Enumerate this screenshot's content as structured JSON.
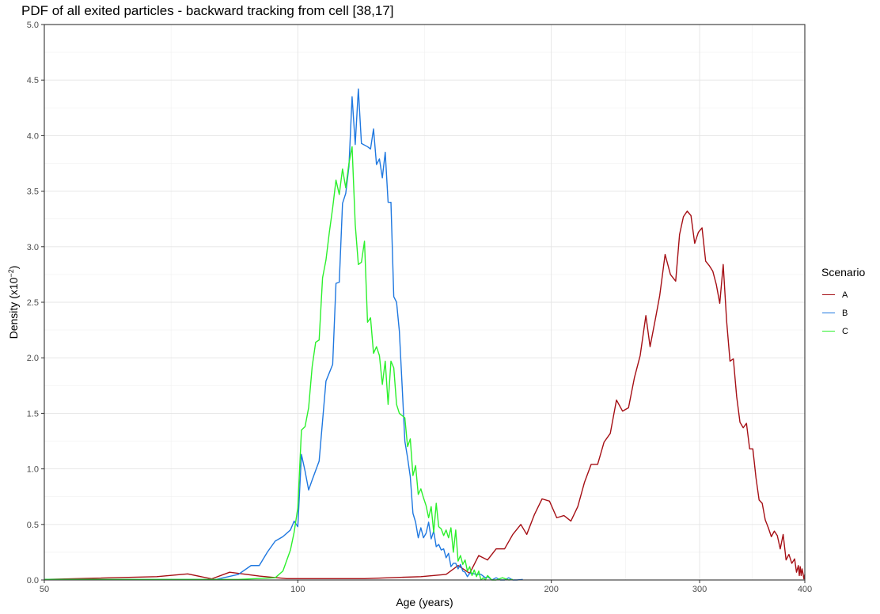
{
  "chart_data": {
    "type": "line",
    "title": "PDF of all exited particles - backward tracking from cell [38,17]",
    "xlabel": "Age (years)",
    "ylabel": "Density (x10",
    "ylabel_exponent": "−2",
    "ylabel_close": ")",
    "x_scale": "log",
    "xlim": [
      50,
      400
    ],
    "ylim": [
      0,
      5
    ],
    "x_ticks": [
      50,
      100,
      200,
      300,
      400
    ],
    "y_ticks": [
      0,
      0.5,
      1,
      1.5,
      2,
      2.5,
      3,
      3.5,
      4,
      4.5,
      5
    ],
    "x_tick_labels": [
      "50",
      "100",
      "200",
      "300",
      "400"
    ],
    "y_tick_labels": [
      "0.0",
      "0.5",
      "1.0",
      "1.5",
      "2.0",
      "2.5",
      "3.0",
      "3.5",
      "4.0",
      "4.5",
      "5.0"
    ],
    "grid": true,
    "legend_title": "Scenario",
    "legend_position": "right",
    "series": [
      {
        "name": "A",
        "color": "#a50f15",
        "points": [
          [
            50,
            0.005
          ],
          [
            68,
            0.03
          ],
          [
            74,
            0.055
          ],
          [
            79,
            0.01
          ],
          [
            83,
            0.07
          ],
          [
            90,
            0.035
          ],
          [
            97,
            0.012
          ],
          [
            120,
            0.012
          ],
          [
            140,
            0.03
          ],
          [
            150,
            0.05
          ],
          [
            155,
            0.13
          ],
          [
            160,
            0.06
          ],
          [
            164,
            0.22
          ],
          [
            168,
            0.18
          ],
          [
            172,
            0.28
          ],
          [
            176,
            0.28
          ],
          [
            180,
            0.41
          ],
          [
            184,
            0.5
          ],
          [
            187,
            0.41
          ],
          [
            191,
            0.59
          ],
          [
            195,
            0.73
          ],
          [
            199,
            0.71
          ],
          [
            203,
            0.56
          ],
          [
            207,
            0.58
          ],
          [
            211,
            0.53
          ],
          [
            215,
            0.66
          ],
          [
            219,
            0.88
          ],
          [
            223,
            1.04
          ],
          [
            227,
            1.04
          ],
          [
            231,
            1.24
          ],
          [
            235,
            1.32
          ],
          [
            239,
            1.62
          ],
          [
            243,
            1.52
          ],
          [
            247,
            1.55
          ],
          [
            251,
            1.82
          ],
          [
            255,
            2.02
          ],
          [
            259,
            2.38
          ],
          [
            262,
            2.1
          ],
          [
            266,
            2.36
          ],
          [
            269,
            2.56
          ],
          [
            273,
            2.93
          ],
          [
            277,
            2.75
          ],
          [
            281,
            2.69
          ],
          [
            284,
            3.11
          ],
          [
            287,
            3.27
          ],
          [
            290,
            3.32
          ],
          [
            293,
            3.28
          ],
          [
            296,
            3.03
          ],
          [
            299,
            3.13
          ],
          [
            302,
            3.17
          ],
          [
            305,
            2.87
          ],
          [
            308,
            2.83
          ],
          [
            311,
            2.78
          ],
          [
            314,
            2.66
          ],
          [
            317,
            2.49
          ],
          [
            320,
            2.84
          ],
          [
            323,
            2.33
          ],
          [
            326,
            1.97
          ],
          [
            329,
            1.99
          ],
          [
            332,
            1.65
          ],
          [
            335,
            1.42
          ],
          [
            338,
            1.37
          ],
          [
            341,
            1.41
          ],
          [
            344,
            1.18
          ],
          [
            347,
            1.18
          ],
          [
            350,
            0.92
          ],
          [
            353,
            0.72
          ],
          [
            356,
            0.69
          ],
          [
            359,
            0.54
          ],
          [
            362,
            0.47
          ],
          [
            365,
            0.39
          ],
          [
            368,
            0.44
          ],
          [
            371,
            0.4
          ],
          [
            374,
            0.28
          ],
          [
            377,
            0.41
          ],
          [
            380,
            0.18
          ],
          [
            383,
            0.23
          ],
          [
            386,
            0.15
          ],
          [
            389,
            0.19
          ],
          [
            391,
            0.07
          ],
          [
            393,
            0.13
          ],
          [
            394,
            0.04
          ],
          [
            395,
            0.12
          ],
          [
            396,
            0.04
          ],
          [
            397,
            0.1
          ],
          [
            398,
            0.06
          ],
          [
            399,
            0.01
          ],
          [
            400,
            0.05
          ]
        ]
      },
      {
        "name": "B",
        "color": "#1f78e0",
        "points": [
          [
            50,
            0.005
          ],
          [
            80,
            0.005
          ],
          [
            85,
            0.05
          ],
          [
            88,
            0.13
          ],
          [
            90,
            0.13
          ],
          [
            92,
            0.25
          ],
          [
            94,
            0.35
          ],
          [
            96,
            0.39
          ],
          [
            98,
            0.45
          ],
          [
            99,
            0.53
          ],
          [
            100,
            0.48
          ],
          [
            101,
            1.13
          ],
          [
            102,
            0.98
          ],
          [
            103,
            0.81
          ],
          [
            104,
            0.9
          ],
          [
            106,
            1.07
          ],
          [
            108,
            1.79
          ],
          [
            110,
            1.94
          ],
          [
            111,
            2.67
          ],
          [
            112,
            2.68
          ],
          [
            113,
            3.39
          ],
          [
            114,
            3.48
          ],
          [
            115,
            3.72
          ],
          [
            116,
            4.35
          ],
          [
            117,
            3.92
          ],
          [
            118,
            4.42
          ],
          [
            119,
            3.93
          ],
          [
            121,
            3.9
          ],
          [
            122,
            3.88
          ],
          [
            123,
            4.06
          ],
          [
            124,
            3.74
          ],
          [
            125,
            3.79
          ],
          [
            126,
            3.62
          ],
          [
            127,
            3.85
          ],
          [
            128,
            3.4
          ],
          [
            129,
            3.4
          ],
          [
            130,
            2.55
          ],
          [
            131,
            2.5
          ],
          [
            132,
            2.24
          ],
          [
            133,
            1.75
          ],
          [
            134,
            1.25
          ],
          [
            135,
            1.1
          ],
          [
            136,
            0.93
          ],
          [
            137,
            0.6
          ],
          [
            138,
            0.52
          ],
          [
            139,
            0.38
          ],
          [
            140,
            0.47
          ],
          [
            141,
            0.38
          ],
          [
            142,
            0.42
          ],
          [
            143,
            0.52
          ],
          [
            144,
            0.37
          ],
          [
            145,
            0.44
          ],
          [
            146,
            0.3
          ],
          [
            147,
            0.32
          ],
          [
            148,
            0.27
          ],
          [
            149,
            0.28
          ],
          [
            150,
            0.2
          ],
          [
            151,
            0.24
          ],
          [
            152,
            0.12
          ],
          [
            153,
            0.15
          ],
          [
            154,
            0.15
          ],
          [
            155,
            0.1
          ],
          [
            156,
            0.14
          ],
          [
            157,
            0.08
          ],
          [
            158,
            0.07
          ],
          [
            159,
            0.03
          ],
          [
            160,
            0.06
          ],
          [
            161,
            0.06
          ],
          [
            163,
            0.05
          ],
          [
            165,
            0.05
          ],
          [
            167,
            0.02
          ],
          [
            168,
            0.03
          ],
          [
            170,
            0.0
          ],
          [
            172,
            0.02
          ],
          [
            174,
            0.0
          ],
          [
            176,
            0.0
          ],
          [
            178,
            0.02
          ],
          [
            180,
            0.0
          ],
          [
            182,
            0.0
          ],
          [
            185,
            0.005
          ]
        ]
      },
      {
        "name": "C",
        "color": "#2cf02c",
        "points": [
          [
            50,
            0.005
          ],
          [
            85,
            0.005
          ],
          [
            94,
            0.02
          ],
          [
            96,
            0.08
          ],
          [
            98,
            0.27
          ],
          [
            99,
            0.43
          ],
          [
            100,
            0.65
          ],
          [
            101,
            1.35
          ],
          [
            102,
            1.38
          ],
          [
            103,
            1.55
          ],
          [
            104,
            1.92
          ],
          [
            105,
            2.14
          ],
          [
            106,
            2.16
          ],
          [
            107,
            2.72
          ],
          [
            108,
            2.88
          ],
          [
            109,
            3.13
          ],
          [
            110,
            3.35
          ],
          [
            111,
            3.6
          ],
          [
            112,
            3.47
          ],
          [
            113,
            3.7
          ],
          [
            114,
            3.53
          ],
          [
            115,
            3.75
          ],
          [
            116,
            3.9
          ],
          [
            117,
            3.2
          ],
          [
            118,
            2.84
          ],
          [
            119,
            2.86
          ],
          [
            120,
            3.05
          ],
          [
            121,
            2.32
          ],
          [
            122,
            2.36
          ],
          [
            123,
            2.04
          ],
          [
            124,
            2.1
          ],
          [
            125,
            2.02
          ],
          [
            126,
            1.76
          ],
          [
            127,
            1.97
          ],
          [
            128,
            1.58
          ],
          [
            129,
            1.97
          ],
          [
            130,
            1.91
          ],
          [
            131,
            1.58
          ],
          [
            132,
            1.5
          ],
          [
            133,
            1.48
          ],
          [
            134,
            1.46
          ],
          [
            135,
            1.2
          ],
          [
            136,
            1.27
          ],
          [
            137,
            0.94
          ],
          [
            138,
            1.03
          ],
          [
            139,
            0.77
          ],
          [
            140,
            0.82
          ],
          [
            141,
            0.74
          ],
          [
            142,
            0.67
          ],
          [
            143,
            0.56
          ],
          [
            144,
            0.66
          ],
          [
            145,
            0.43
          ],
          [
            146,
            0.69
          ],
          [
            147,
            0.48
          ],
          [
            148,
            0.46
          ],
          [
            149,
            0.4
          ],
          [
            150,
            0.45
          ],
          [
            151,
            0.38
          ],
          [
            152,
            0.47
          ],
          [
            153,
            0.25
          ],
          [
            154,
            0.45
          ],
          [
            155,
            0.17
          ],
          [
            156,
            0.22
          ],
          [
            157,
            0.14
          ],
          [
            158,
            0.18
          ],
          [
            159,
            0.08
          ],
          [
            160,
            0.12
          ],
          [
            161,
            0.04
          ],
          [
            162,
            0.09
          ],
          [
            163,
            0.03
          ],
          [
            164,
            0.08
          ],
          [
            165,
            0.0
          ],
          [
            166,
            0.02
          ],
          [
            167,
            0.0
          ],
          [
            168,
            0.04
          ],
          [
            170,
            0.0
          ],
          [
            172,
            0.0
          ],
          [
            175,
            0.02
          ],
          [
            178,
            0.0
          ],
          [
            180,
            0.005
          ]
        ]
      }
    ]
  }
}
